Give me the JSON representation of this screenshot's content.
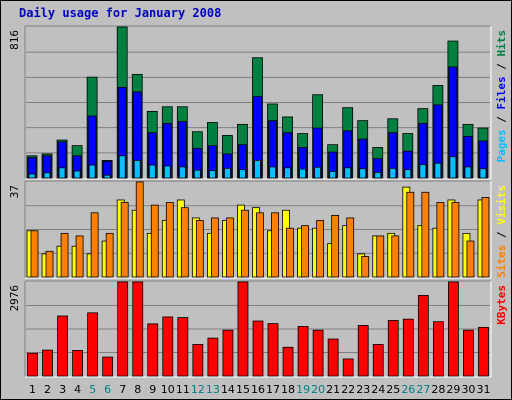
{
  "chart_data": {
    "type": "bar",
    "title": "Daily usage for January 2008",
    "days": [
      "1",
      "2",
      "3",
      "4",
      "5",
      "6",
      "7",
      "8",
      "9",
      "10",
      "11",
      "12",
      "13",
      "14",
      "15",
      "16",
      "17",
      "18",
      "19",
      "20",
      "21",
      "22",
      "23",
      "24",
      "25",
      "26",
      "27",
      "28",
      "29",
      "30",
      "31"
    ],
    "weekend_days": [
      "5",
      "6",
      "12",
      "13",
      "19",
      "20",
      "26",
      "27"
    ],
    "colors": {
      "hits": "#008040",
      "files": "#0000ff",
      "pages": "#00c0ff",
      "visits": "#ffff00",
      "sites": "#ff8000",
      "kbytes": "#ff0000",
      "title": "#0000c0",
      "weekday_tick": "#000000",
      "weekend_tick": "#008080"
    },
    "panels": [
      {
        "id": "hits-files-pages",
        "ymax_label": "816",
        "ymax": 816,
        "series": [
          {
            "name": "Hits",
            "color": "#008040",
            "values": [
              120,
              130,
              205,
              175,
              545,
              95,
              816,
              560,
              360,
              385,
              385,
              250,
              300,
              230,
              290,
              650,
              400,
              330,
              240,
              450,
              180,
              380,
              310,
              165,
              320,
              240,
              375,
              500,
              740,
              290,
              270
            ]
          },
          {
            "name": "Files",
            "color": "#0000ff",
            "values": [
              110,
              120,
              195,
              120,
              335,
              90,
              490,
              465,
              245,
              295,
              305,
              160,
              175,
              130,
              180,
              440,
              310,
              245,
              165,
              270,
              140,
              255,
              210,
              105,
              245,
              145,
              295,
              395,
              600,
              225,
              200
            ]
          },
          {
            "name": "Pages",
            "color": "#00c0ff",
            "values": [
              22,
              28,
              55,
              38,
              70,
              15,
              120,
              95,
              70,
              65,
              60,
              42,
              40,
              52,
              45,
              95,
              60,
              55,
              48,
              58,
              35,
              55,
              50,
              30,
              52,
              45,
              72,
              80,
              115,
              60,
              50
            ]
          }
        ],
        "legend": [
          "Pages",
          "Files",
          "Hits"
        ]
      },
      {
        "id": "visits-sites",
        "ymax_label": "37",
        "ymax": 37,
        "series": [
          {
            "name": "Visits",
            "color": "#ffff00",
            "values": [
              18,
              9,
              12,
              12,
              9,
              14,
              30,
              26,
              17,
              22,
              30,
              23,
              17,
              22,
              28,
              27,
              18,
              26,
              19,
              19,
              13,
              20,
              9,
              16,
              17,
              35,
              20,
              19,
              30,
              17,
              30
            ]
          },
          {
            "name": "Sites",
            "color": "#ff8000",
            "values": [
              18,
              10,
              17,
              16,
              25,
              17,
              29,
              37,
              28,
              29,
              27,
              22,
              23,
              23,
              26,
              25,
              25,
              19,
              20,
              22,
              24,
              23,
              8,
              16,
              16,
              33,
              33,
              29,
              29,
              14,
              31
            ]
          }
        ],
        "legend": [
          "Sites",
          "Visits"
        ]
      },
      {
        "id": "kbytes",
        "ymax_label": "2976",
        "ymax": 2976,
        "series": [
          {
            "name": "KBytes",
            "color": "#ff0000",
            "values": [
              720,
              820,
              1900,
              810,
              2000,
              600,
              2976,
              2976,
              1650,
              1870,
              1850,
              1000,
              1200,
              1450,
              2976,
              1740,
              1660,
              910,
              1570,
              1450,
              1170,
              540,
              1600,
              1000,
              1760,
              1800,
              2550,
              1720,
              2976,
              1450,
              1540
            ]
          }
        ],
        "legend": [
          "KBytes"
        ]
      }
    ]
  }
}
